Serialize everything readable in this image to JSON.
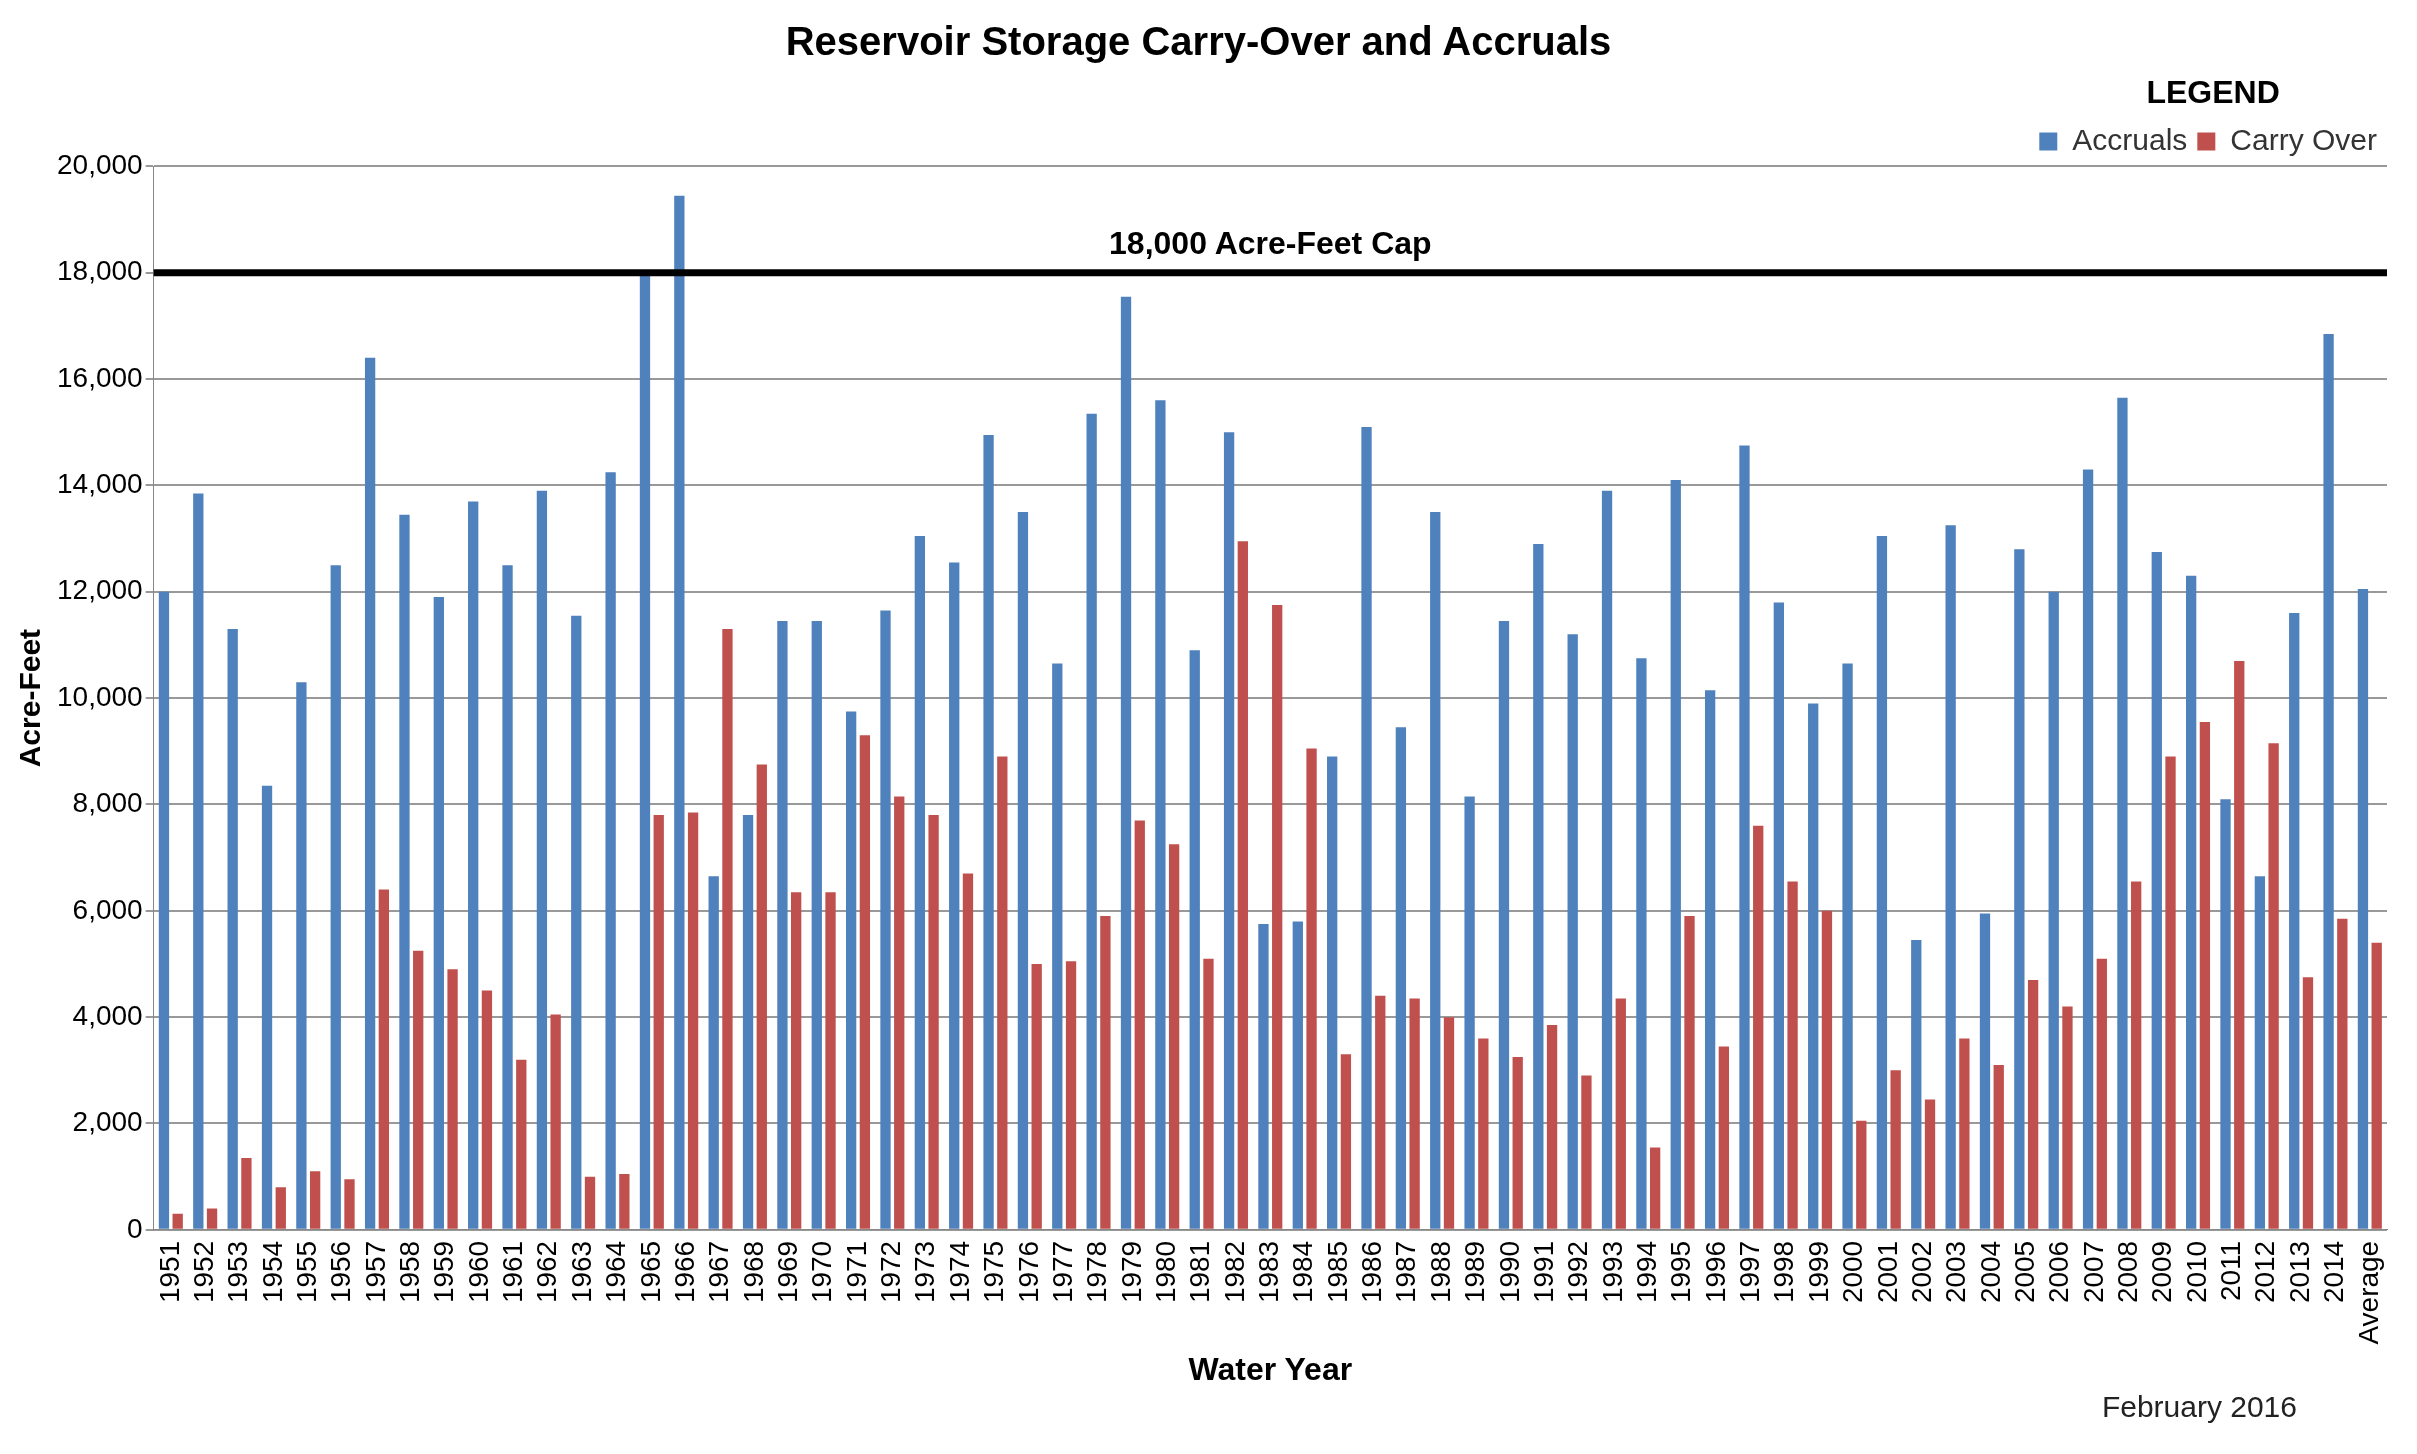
{
  "chart_data": {
    "type": "bar",
    "title": "Reservoir Storage Carry-Over and Accruals",
    "xlabel": "Water Year",
    "ylabel": "Acre-Feet",
    "categories": [
      "1951",
      "1952",
      "1953",
      "1954",
      "1955",
      "1956",
      "1957",
      "1958",
      "1959",
      "1960",
      "1961",
      "1962",
      "1963",
      "1964",
      "1965",
      "1966",
      "1967",
      "1968",
      "1969",
      "1970",
      "1971",
      "1972",
      "1973",
      "1974",
      "1975",
      "1976",
      "1977",
      "1978",
      "1979",
      "1980",
      "1981",
      "1982",
      "1983",
      "1984",
      "1985",
      "1986",
      "1987",
      "1988",
      "1989",
      "1990",
      "1991",
      "1992",
      "1993",
      "1994",
      "1995",
      "1996",
      "1997",
      "1998",
      "1999",
      "2000",
      "2001",
      "2002",
      "2003",
      "2004",
      "2005",
      "2006",
      "2007",
      "2008",
      "2009",
      "2010",
      "2011",
      "2012",
      "2013",
      "2014",
      "Average"
    ],
    "series": [
      {
        "name": "Accruals",
        "color": "#4f81bd",
        "values": [
          12000,
          13850,
          11300,
          8350,
          10300,
          12500,
          16400,
          13450,
          11900,
          13700,
          12500,
          13900,
          11550,
          14250,
          17950,
          19450,
          6650,
          7800,
          11450,
          11450,
          9750,
          11650,
          13050,
          12550,
          14950,
          13500,
          10650,
          15350,
          17550,
          15600,
          10900,
          15000,
          5750,
          5800,
          8900,
          15100,
          9450,
          13500,
          8150,
          11450,
          12900,
          11200,
          13900,
          10750,
          14100,
          10150,
          14750,
          11800,
          9900,
          10650,
          13050,
          5450,
          13250,
          5950,
          12800,
          12000,
          14300,
          15650,
          12750,
          12300,
          8100,
          6650,
          11600,
          16850,
          12050
        ]
      },
      {
        "name": "Carry Over",
        "color": "#c0504d",
        "values": [
          300,
          400,
          1350,
          800,
          1100,
          950,
          6400,
          5250,
          4900,
          4500,
          3200,
          4050,
          1000,
          1050,
          7800,
          7850,
          11300,
          8750,
          6350,
          6350,
          9300,
          8150,
          7800,
          6700,
          8900,
          5000,
          5050,
          5900,
          7700,
          7250,
          5100,
          12950,
          11750,
          9050,
          3300,
          4400,
          4350,
          4000,
          3600,
          3250,
          3850,
          2900,
          4350,
          1550,
          5900,
          3450,
          7600,
          6550,
          6000,
          2050,
          3000,
          2450,
          3600,
          3100,
          4700,
          4200,
          5100,
          6550,
          8900,
          9550,
          10700,
          9150,
          4750,
          5850,
          5400
        ]
      }
    ],
    "ylim": [
      0,
      20000
    ],
    "yticks": [
      0,
      {
        "value": 2000,
        "label": "2,000"
      },
      {
        "value": 4000,
        "label": "4,000"
      },
      {
        "value": 6000,
        "label": "6,000"
      },
      {
        "value": 8000,
        "label": "8,000"
      },
      {
        "value": 10000,
        "label": "10,000"
      },
      {
        "value": 12000,
        "label": "12,000"
      },
      {
        "value": 14000,
        "label": "14,000"
      },
      {
        "value": 16000,
        "label": "16,000"
      },
      {
        "value": 18000,
        "label": "18,000"
      },
      {
        "value": 20000,
        "label": "20,000"
      }
    ],
    "grid": "y",
    "legend": "top right",
    "legend_title": "LEGEND",
    "ref_lines": [
      {
        "axis": "y",
        "value": 18000,
        "label": "18,000 Acre-Feet Cap",
        "color": "#000000"
      }
    ],
    "annotations": [
      "February 2016"
    ]
  }
}
